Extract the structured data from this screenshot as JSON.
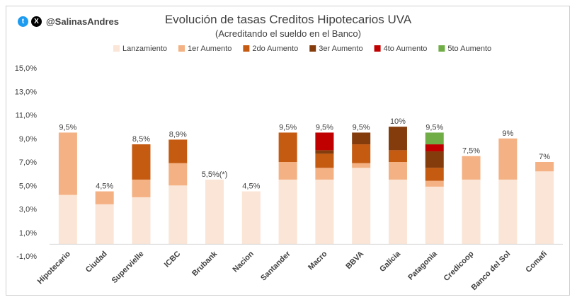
{
  "author": {
    "handle": "@SalinasAndres",
    "icons": [
      "twitter-icon",
      "x-icon"
    ]
  },
  "chart_data": {
    "type": "bar",
    "stacked": true,
    "title": "Evolución de tasas Creditos Hipotecarios UVA",
    "subtitle": "(Acreditando el sueldo en el Banco)",
    "categories": [
      "Hipotecario",
      "Ciudad",
      "Supervielle",
      "ICBC",
      "Brubank",
      "Nacion",
      "Santander",
      "Macro",
      "BBVA",
      "Galicia",
      "Patagonia",
      "Credicoop",
      "Banco del Sol",
      "Comafi"
    ],
    "series": [
      {
        "name": "Lanzamiento",
        "color": "#fbe5d6",
        "values": [
          4.2,
          3.4,
          4.0,
          5.0,
          5.5,
          4.5,
          5.5,
          5.5,
          6.5,
          5.5,
          4.9,
          5.5,
          5.5,
          6.2
        ]
      },
      {
        "name": "1er Aumento",
        "color": "#f4b183",
        "values": [
          5.3,
          1.1,
          1.5,
          1.9,
          0,
          0,
          1.5,
          1.0,
          0.4,
          1.5,
          0.5,
          2.0,
          3.5,
          0.8
        ]
      },
      {
        "name": "2do Aumento",
        "color": "#c55a11",
        "values": [
          0,
          0,
          3.0,
          2.0,
          0,
          0,
          2.5,
          1.2,
          1.6,
          1.0,
          1.1,
          0,
          0,
          0
        ]
      },
      {
        "name": "3er Aumento",
        "color": "#843c0c",
        "values": [
          0,
          0,
          0,
          0,
          0,
          0,
          0,
          0.3,
          1.0,
          2.0,
          1.4,
          0,
          0,
          0
        ]
      },
      {
        "name": "4to Aumento",
        "color": "#c00000",
        "values": [
          0,
          0,
          0,
          0,
          0,
          0,
          0,
          1.5,
          0,
          0,
          0.6,
          0,
          0,
          0
        ]
      },
      {
        "name": "5to Aumento",
        "color": "#70ad47",
        "values": [
          0,
          0,
          0,
          0,
          0,
          0,
          0,
          0,
          0,
          0,
          1.0,
          0,
          0,
          0
        ]
      }
    ],
    "data_labels": [
      "9,5%",
      "4,5%",
      "8,5%",
      "8,9%",
      "5,5%(*)",
      "4,5%",
      "9,5%",
      "9,5%",
      "9,5%",
      "10%",
      "9,5%",
      "7,5%",
      "9%",
      "7%"
    ],
    "yticks": [
      -1,
      1,
      3,
      5,
      7,
      9,
      11,
      13,
      15
    ],
    "ytick_labels": [
      "-1,0%",
      "1,0%",
      "3,0%",
      "5,0%",
      "7,0%",
      "9,0%",
      "11,0%",
      "13,0%",
      "15,0%"
    ],
    "ylim": [
      -1,
      15
    ],
    "legend_position": "top",
    "grid": false
  }
}
